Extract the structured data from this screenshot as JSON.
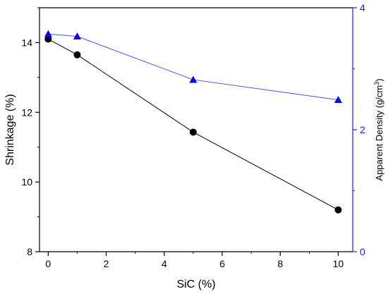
{
  "chart_data": {
    "type": "line",
    "xlabel": "SiC (%)",
    "ylabel_left": "Shrinkage (%)",
    "ylabel_right": {
      "prefix": "Apparent Density (g/cm",
      "superscript": "3",
      "suffix": ")"
    },
    "xlim": [
      -0.3,
      10.5
    ],
    "ylim_left": [
      8,
      15
    ],
    "ylim_right": [
      0,
      4
    ],
    "x_ticks": [
      0,
      2,
      4,
      6,
      8,
      10
    ],
    "y_left_ticks": [
      8,
      10,
      12,
      14
    ],
    "y_right_ticks": [
      0,
      2,
      4
    ],
    "grid": false,
    "series": [
      {
        "axis": "left",
        "color": "#000000",
        "marker": "circle",
        "x": [
          0,
          1,
          5,
          10
        ],
        "y": [
          14.1,
          13.65,
          11.43,
          9.2
        ]
      },
      {
        "axis": "right",
        "color": "#4d4dff",
        "marker_color": "#0000ff",
        "marker": "triangle",
        "x": [
          0,
          1,
          5,
          10
        ],
        "y": [
          3.57,
          3.53,
          2.82,
          2.49
        ]
      }
    ]
  },
  "colors": {
    "right_axis": "#1a1aff",
    "left_axis": "#000000"
  }
}
